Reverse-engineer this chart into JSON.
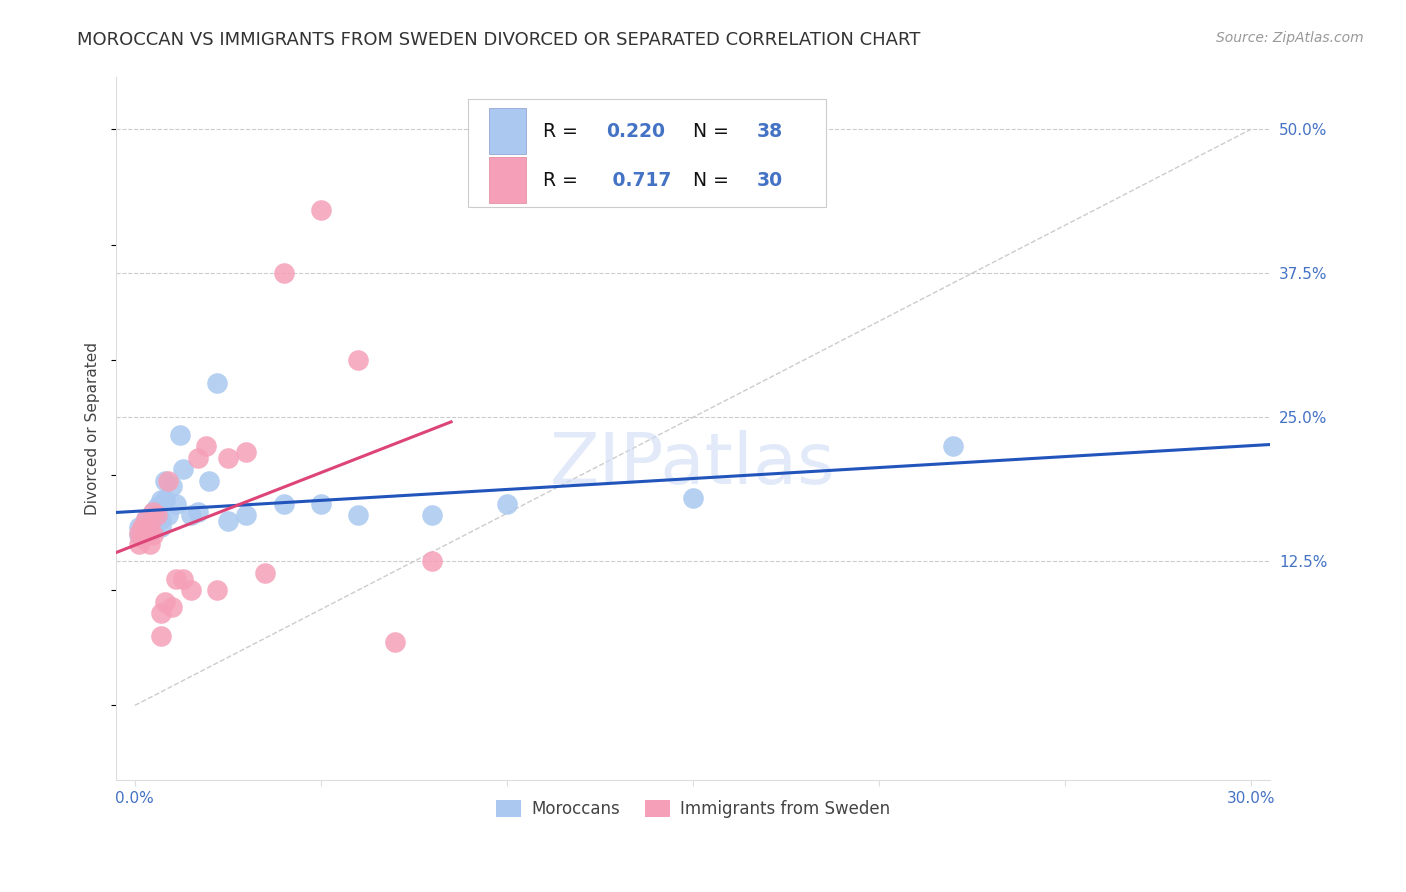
{
  "title": "MOROCCAN VS IMMIGRANTS FROM SWEDEN DIVORCED OR SEPARATED CORRELATION CHART",
  "source": "Source: ZipAtlas.com",
  "ylabel_label": "Divorced or Separated",
  "xlim": [
    -0.005,
    0.305
  ],
  "ylim": [
    -0.065,
    0.545
  ],
  "moroccans": {
    "color": "#aac8f0",
    "line_color": "#2255bb",
    "x": [
      0.001,
      0.001,
      0.002,
      0.002,
      0.003,
      0.003,
      0.003,
      0.004,
      0.004,
      0.004,
      0.005,
      0.005,
      0.005,
      0.006,
      0.006,
      0.007,
      0.007,
      0.007,
      0.008,
      0.008,
      0.009,
      0.01,
      0.011,
      0.012,
      0.013,
      0.015,
      0.017,
      0.02,
      0.022,
      0.025,
      0.03,
      0.04,
      0.05,
      0.06,
      0.08,
      0.1,
      0.15,
      0.22
    ],
    "y": [
      0.155,
      0.148,
      0.152,
      0.148,
      0.162,
      0.155,
      0.148,
      0.162,
      0.157,
      0.15,
      0.168,
      0.16,
      0.152,
      0.172,
      0.165,
      0.178,
      0.162,
      0.155,
      0.178,
      0.195,
      0.165,
      0.19,
      0.175,
      0.235,
      0.205,
      0.165,
      0.168,
      0.195,
      0.28,
      0.16,
      0.165,
      0.175,
      0.175,
      0.165,
      0.165,
      0.175,
      0.18,
      0.225
    ]
  },
  "sweden": {
    "color": "#f5a0b8",
    "line_color": "#dd4477",
    "x": [
      0.001,
      0.001,
      0.002,
      0.002,
      0.003,
      0.003,
      0.004,
      0.004,
      0.005,
      0.005,
      0.006,
      0.007,
      0.007,
      0.008,
      0.009,
      0.01,
      0.011,
      0.013,
      0.015,
      0.017,
      0.019,
      0.022,
      0.025,
      0.03,
      0.035,
      0.04,
      0.05,
      0.06,
      0.07,
      0.08
    ],
    "y": [
      0.15,
      0.14,
      0.155,
      0.145,
      0.162,
      0.148,
      0.155,
      0.14,
      0.168,
      0.148,
      0.165,
      0.06,
      0.08,
      0.09,
      0.195,
      0.085,
      0.11,
      0.11,
      0.1,
      0.215,
      0.225,
      0.1,
      0.215,
      0.22,
      0.115,
      0.375,
      0.43,
      0.3,
      0.055,
      0.125
    ]
  },
  "diagonal_line_color": "#cccccc",
  "background_color": "#ffffff",
  "grid_color": "#cccccc",
  "y_ticks": [
    0.125,
    0.25,
    0.375,
    0.5
  ],
  "y_tick_labels": [
    "12.5%",
    "25.0%",
    "37.5%",
    "50.0%"
  ],
  "x_ticks": [
    0.0,
    0.05,
    0.1,
    0.15,
    0.2,
    0.25,
    0.3
  ],
  "x_tick_labels": [
    "0.0%",
    "",
    "",
    "",
    "",
    "",
    "30.0%"
  ],
  "tick_color": "#4472c4",
  "title_fontsize": 13,
  "source_fontsize": 10,
  "legend_R_color": "#111111",
  "legend_val_color": "#4472c4",
  "legend_N_color": "#111111",
  "legend_Nval_color": "#4472c4"
}
